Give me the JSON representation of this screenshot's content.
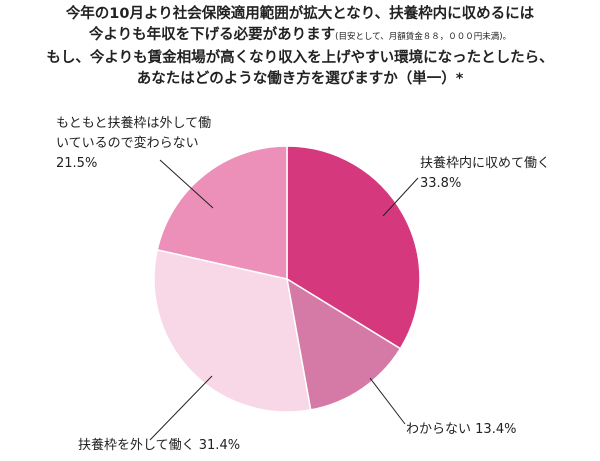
{
  "chart_data": {
    "type": "pie",
    "title_lines": [
      "今年の10月より社会保険適用範囲が拡大となり、扶養枠内に収めるには",
      "今よりも年収を下げる必要があります",
      "もし、今よりも賃金相場が高くなり収入を上げやすい環境になったとしたら、",
      "あなたはどのような働き方を選びますか（単一）*"
    ],
    "title_note": "(目安として、月額賃金８８，０００円未満)。",
    "categories": [
      "扶養枠内に収めて働く",
      "わからない",
      "扶養枠を外して働く",
      "もともと扶養枠は外して働いているので変わらない"
    ],
    "values": [
      33.8,
      13.4,
      31.4,
      21.5
    ],
    "value_labels": [
      "33.8%",
      "13.4%",
      "31.4%",
      "21.5%"
    ],
    "colors": [
      "#d6387d",
      "#d57aa6",
      "#f8d7e6",
      "#ec90b9"
    ]
  }
}
